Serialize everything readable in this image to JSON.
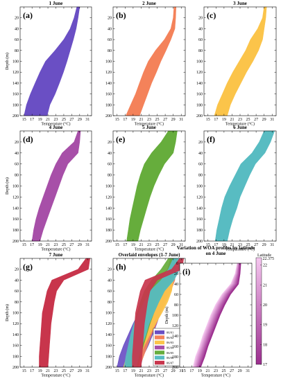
{
  "chart_data": [
    {
      "type": "area",
      "panel": "(a)",
      "title": "1 June",
      "xlabel": "Temperature (°C)",
      "ylabel": "Depth (m)",
      "xlim": [
        14,
        32
      ],
      "ylim": [
        200,
        0
      ],
      "xticks": [
        15,
        17,
        19,
        21,
        23,
        25,
        27,
        29,
        31
      ],
      "yticks": [
        20,
        40,
        60,
        80,
        100,
        120,
        140,
        160,
        180,
        200
      ],
      "color": "#6a4fc4",
      "series": [
        {
          "depth": [
            0,
            20,
            40,
            60,
            80,
            100,
            120,
            140,
            160,
            180,
            200
          ],
          "tmin": [
            28.3,
            27.6,
            26.6,
            25.0,
            22.8,
            20.4,
            19.0,
            17.8,
            16.6,
            15.6,
            15.0
          ],
          "tmax": [
            29.0,
            28.6,
            28.1,
            27.4,
            26.6,
            25.8,
            24.9,
            23.9,
            22.8,
            21.5,
            20.8
          ]
        }
      ]
    },
    {
      "type": "area",
      "panel": "(b)",
      "title": "2 June",
      "xlabel": "Temperature (°C)",
      "ylabel": "",
      "xlim": [
        14,
        32
      ],
      "ylim": [
        200,
        0
      ],
      "xticks": [
        15,
        17,
        19,
        21,
        23,
        25,
        27,
        29,
        31
      ],
      "yticks": [
        20,
        40,
        60,
        80,
        100,
        120,
        140,
        160,
        180,
        200
      ],
      "color": "#f4825a",
      "series": [
        {
          "depth": [
            0,
            20,
            40,
            60,
            80,
            100,
            120,
            140,
            160,
            180,
            200
          ],
          "tmin": [
            29.2,
            29.0,
            28.4,
            26.8,
            24.6,
            22.8,
            21.6,
            20.6,
            19.6,
            18.4,
            17.2
          ],
          "tmax": [
            29.7,
            29.6,
            29.4,
            28.4,
            27.2,
            25.9,
            24.8,
            23.6,
            22.6,
            21.6,
            20.6
          ]
        }
      ]
    },
    {
      "type": "area",
      "panel": "(c)",
      "title": "3 June",
      "xlabel": "Temperature (°C)",
      "ylabel": "",
      "xlim": [
        14,
        32
      ],
      "ylim": [
        200,
        0
      ],
      "xticks": [
        15,
        17,
        19,
        21,
        23,
        25,
        27,
        29,
        31
      ],
      "yticks": [
        20,
        40,
        60,
        80,
        100,
        120,
        140,
        160,
        180,
        200
      ],
      "color": "#fbc44a",
      "series": [
        {
          "depth": [
            0,
            20,
            40,
            60,
            80,
            100,
            120,
            140,
            160,
            180,
            200
          ],
          "tmin": [
            29.0,
            28.6,
            27.4,
            25.6,
            24.4,
            22.8,
            21.2,
            19.8,
            18.6,
            17.4,
            16.6
          ],
          "tmax": [
            29.6,
            29.4,
            29.0,
            28.6,
            27.6,
            26.2,
            24.6,
            23.2,
            21.8,
            20.6,
            19.8
          ]
        }
      ]
    },
    {
      "type": "area",
      "panel": "(d)",
      "title": "4 June",
      "xlabel": "Temperature (°C)",
      "ylabel": "Depth (m)",
      "xlim": [
        14,
        32
      ],
      "ylim": [
        200,
        0
      ],
      "xticks": [
        15,
        17,
        19,
        21,
        23,
        25,
        27,
        29,
        31
      ],
      "yticks": [
        20,
        40,
        60,
        80,
        100,
        120,
        140,
        160,
        180,
        200
      ],
      "color": "#a74fa8",
      "series": [
        {
          "depth": [
            0,
            20,
            40,
            60,
            80,
            100,
            120,
            140,
            160,
            180,
            200
          ],
          "tmin": [
            28.6,
            27.6,
            24.6,
            23.0,
            21.8,
            20.8,
            19.8,
            18.8,
            18.0,
            17.4,
            17.0
          ],
          "tmax": [
            29.2,
            29.0,
            28.6,
            26.0,
            24.8,
            23.8,
            22.8,
            21.8,
            20.8,
            19.8,
            19.0
          ]
        }
      ]
    },
    {
      "type": "area",
      "panel": "(e)",
      "title": "5 June",
      "xlabel": "Temperature (°C)",
      "ylabel": "",
      "xlim": [
        14,
        32
      ],
      "ylim": [
        200,
        0
      ],
      "xticks": [
        15,
        17,
        19,
        21,
        23,
        25,
        27,
        29,
        31
      ],
      "yticks": [
        20,
        40,
        60,
        80,
        100,
        120,
        140,
        160,
        180,
        200
      ],
      "color": "#66ad3c",
      "series": [
        {
          "depth": [
            0,
            20,
            40,
            60,
            80,
            100,
            120,
            140,
            160,
            180,
            200
          ],
          "tmin": [
            27.8,
            26.0,
            23.6,
            21.8,
            20.8,
            20.0,
            19.4,
            18.8,
            18.2,
            17.8,
            17.4
          ],
          "tmax": [
            30.0,
            29.6,
            29.0,
            26.8,
            25.4,
            24.2,
            23.2,
            22.4,
            21.6,
            20.8,
            20.2
          ]
        }
      ]
    },
    {
      "type": "area",
      "panel": "(f)",
      "title": "6 June",
      "xlabel": "Temperature (°C)",
      "ylabel": "",
      "xlim": [
        14,
        32
      ],
      "ylim": [
        200,
        0
      ],
      "xticks": [
        15,
        17,
        19,
        21,
        23,
        25,
        27,
        29,
        31
      ],
      "yticks": [
        20,
        40,
        60,
        80,
        100,
        120,
        140,
        160,
        180,
        200
      ],
      "color": "#58bcc2",
      "series": [
        {
          "depth": [
            0,
            20,
            40,
            60,
            80,
            100,
            120,
            140,
            160,
            180,
            200
          ],
          "tmin": [
            29.0,
            27.8,
            26.0,
            23.2,
            21.8,
            20.4,
            19.2,
            18.4,
            17.8,
            17.2,
            16.8
          ],
          "tmax": [
            31.6,
            30.6,
            29.2,
            26.8,
            25.4,
            24.2,
            23.0,
            22.2,
            21.2,
            20.4,
            19.8
          ]
        }
      ]
    },
    {
      "type": "area",
      "panel": "(g)",
      "title": "7 June",
      "xlabel": "Temperature (°C)",
      "ylabel": "Depth (m)",
      "xlim": [
        14,
        32
      ],
      "ylim": [
        200,
        0
      ],
      "xticks": [
        15,
        17,
        19,
        21,
        23,
        25,
        27,
        29,
        31
      ],
      "yticks": [
        20,
        40,
        60,
        80,
        100,
        120,
        140,
        160,
        180,
        200
      ],
      "color": "#c8354c",
      "series": [
        {
          "depth": [
            0,
            20,
            40,
            60,
            80,
            100,
            120,
            140,
            160,
            180,
            200
          ],
          "tmin": [
            30.6,
            28.6,
            22.0,
            20.8,
            20.2,
            19.6,
            19.4,
            19.2,
            19.0,
            18.8,
            18.8
          ],
          "tmax": [
            31.6,
            31.2,
            25.0,
            23.2,
            22.6,
            22.2,
            21.8,
            21.6,
            21.4,
            21.2,
            21.0
          ]
        }
      ]
    },
    {
      "type": "area",
      "panel": "(h)",
      "title": "Overlaid envelopes (1-7 June)",
      "xlabel": "Temperature (°C)",
      "ylabel": "",
      "xlim": [
        14,
        32
      ],
      "ylim": [
        200,
        0
      ],
      "xticks": [
        15,
        17,
        19,
        21,
        23,
        25,
        27,
        29,
        31
      ],
      "yticks": [
        20,
        40,
        60,
        80,
        100,
        120,
        140,
        160,
        180,
        200
      ],
      "legend": "bottom-right",
      "series": [
        {
          "name": "06/01",
          "color": "#6a4fc4",
          "depth": [
            0,
            20,
            40,
            60,
            80,
            100,
            120,
            140,
            160,
            180,
            200
          ],
          "tmin": [
            28.3,
            27.6,
            26.6,
            25.0,
            22.8,
            20.4,
            19.0,
            17.8,
            16.6,
            15.6,
            15.0
          ],
          "tmax": [
            29.0,
            28.6,
            28.1,
            27.4,
            26.6,
            25.8,
            24.9,
            23.9,
            22.8,
            21.5,
            20.8
          ]
        },
        {
          "name": "06/02",
          "color": "#f4825a",
          "depth": [
            0,
            20,
            40,
            60,
            80,
            100,
            120,
            140,
            160,
            180,
            200
          ],
          "tmin": [
            29.2,
            29.0,
            28.4,
            26.8,
            24.6,
            22.8,
            21.6,
            20.6,
            19.6,
            18.4,
            17.2
          ],
          "tmax": [
            29.7,
            29.6,
            29.4,
            28.4,
            27.2,
            25.9,
            24.8,
            23.6,
            22.6,
            21.6,
            20.6
          ]
        },
        {
          "name": "06/03",
          "color": "#fbc44a",
          "depth": [
            0,
            20,
            40,
            60,
            80,
            100,
            120,
            140,
            160,
            180,
            200
          ],
          "tmin": [
            29.0,
            28.6,
            27.4,
            25.6,
            24.4,
            22.8,
            21.2,
            19.8,
            18.6,
            17.4,
            16.6
          ],
          "tmax": [
            29.6,
            29.4,
            29.0,
            28.6,
            27.6,
            26.2,
            24.6,
            23.2,
            21.8,
            20.6,
            19.8
          ]
        },
        {
          "name": "06/04",
          "color": "#a74fa8",
          "depth": [
            0,
            20,
            40,
            60,
            80,
            100,
            120,
            140,
            160,
            180,
            200
          ],
          "tmin": [
            28.6,
            27.6,
            24.6,
            23.0,
            21.8,
            20.8,
            19.8,
            18.8,
            18.0,
            17.4,
            17.0
          ],
          "tmax": [
            29.2,
            29.0,
            28.6,
            26.0,
            24.8,
            23.8,
            22.8,
            21.8,
            20.8,
            19.8,
            19.0
          ]
        },
        {
          "name": "06/05",
          "color": "#66ad3c",
          "depth": [
            0,
            20,
            40,
            60,
            80,
            100,
            120,
            140,
            160,
            180,
            200
          ],
          "tmin": [
            27.8,
            26.0,
            23.6,
            21.8,
            20.8,
            20.0,
            19.4,
            18.8,
            18.2,
            17.8,
            17.4
          ],
          "tmax": [
            30.0,
            29.6,
            29.0,
            26.8,
            25.4,
            24.2,
            23.2,
            22.4,
            21.6,
            20.8,
            20.2
          ]
        },
        {
          "name": "06/06",
          "color": "#58bcc2",
          "depth": [
            0,
            20,
            40,
            60,
            80,
            100,
            120,
            140,
            160,
            180,
            200
          ],
          "tmin": [
            29.0,
            27.8,
            26.0,
            23.2,
            21.8,
            20.4,
            19.2,
            18.4,
            17.8,
            17.2,
            16.8
          ],
          "tmax": [
            31.6,
            30.6,
            29.2,
            26.8,
            25.4,
            24.2,
            23.0,
            22.2,
            21.2,
            20.4,
            19.8
          ]
        },
        {
          "name": "06/07",
          "color": "#c8354c",
          "depth": [
            0,
            20,
            40,
            60,
            80,
            100,
            120,
            140,
            160,
            180,
            200
          ],
          "tmin": [
            30.6,
            28.6,
            22.0,
            20.8,
            20.2,
            19.6,
            19.4,
            19.2,
            19.0,
            18.8,
            18.8
          ],
          "tmax": [
            31.6,
            31.2,
            25.0,
            23.2,
            22.6,
            22.2,
            21.8,
            21.6,
            21.4,
            21.2,
            21.0
          ]
        }
      ]
    },
    {
      "type": "line",
      "panel": "(i)",
      "title": "Variation of WOA profiles by latitude on 4 June",
      "xlabel": "Temperature (°C)",
      "ylabel": "Depth (m)",
      "xlim": [
        14,
        32
      ],
      "ylim": [
        200,
        0
      ],
      "xticks": [
        15,
        17,
        19,
        21,
        23,
        25,
        27,
        29,
        31
      ],
      "yticks": [
        0,
        20,
        40,
        60,
        80,
        100,
        120,
        140,
        160,
        180,
        200
      ],
      "colorbar": {
        "label": "Latitude",
        "top_label": "22.375",
        "ticks": [
          22,
          21,
          20,
          19,
          18,
          17
        ],
        "min": 17,
        "max": 22.375,
        "color_low": "#9b2e8e",
        "color_high": "#f6c8f0"
      },
      "band": {
        "depth": [
          0,
          20,
          40,
          60,
          80,
          100,
          120,
          140,
          160,
          180,
          200
        ],
        "tmin": [
          28.4,
          27.9,
          26.8,
          24.6,
          23.0,
          21.8,
          20.8,
          19.8,
          19.0,
          18.0,
          17.4
        ],
        "tmax": [
          29.2,
          29.0,
          28.6,
          26.6,
          25.2,
          24.0,
          23.0,
          22.0,
          21.0,
          20.2,
          19.2
        ]
      }
    }
  ]
}
